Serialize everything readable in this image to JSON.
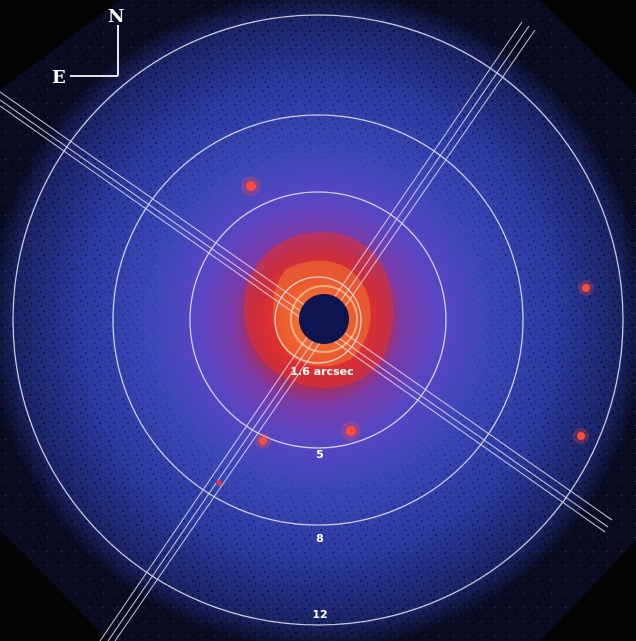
{
  "compass": {
    "north": "N",
    "east": "E"
  },
  "rings": [
    {
      "label": "1.6 arcsec"
    },
    {
      "label": "5"
    },
    {
      "label": "8"
    },
    {
      "label": "12"
    }
  ],
  "colors": {
    "background": "#040404",
    "halo_outer": "#2f3fb8",
    "halo_mid": "#5a3cc0",
    "core_red": "#e8322a",
    "core_orange": "#f28a3a",
    "occulter": "#0e1450",
    "ring_stroke": "#e6e6ee"
  }
}
